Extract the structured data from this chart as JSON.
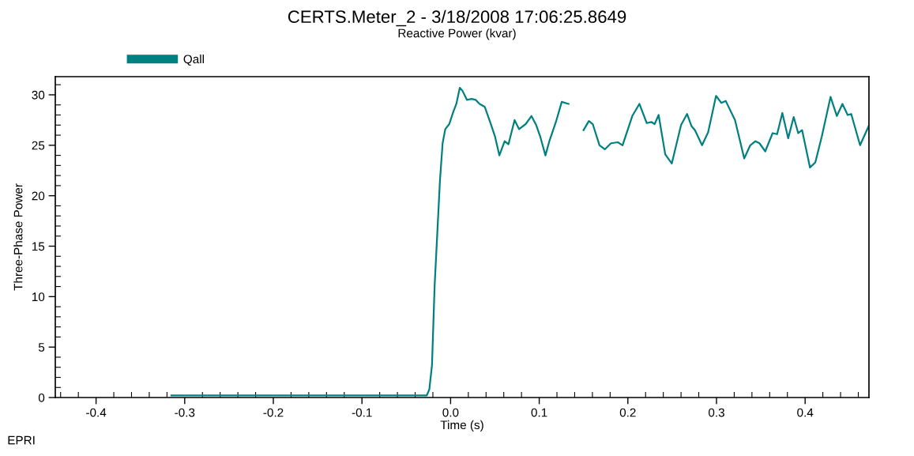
{
  "chart_data": {
    "type": "line",
    "title": "CERTS.Meter_2 - 3/18/2008 17:06:25.8649",
    "subtitle": "Reactive Power (kvar)",
    "xlabel": "Time (s)",
    "ylabel": "Three-Phase Power",
    "annotations": [
      "EPRI"
    ],
    "xlim": [
      -0.446,
      0.472
    ],
    "xticks": [
      -0.4,
      -0.3,
      -0.2,
      -0.1,
      {
        "value": 0,
        "label": "0.0"
      },
      0.1,
      0.2,
      0.3,
      0.4
    ],
    "ylim": [
      0,
      31.8
    ],
    "yticks": [
      0,
      5,
      10,
      15,
      20,
      25,
      30
    ],
    "grid": false,
    "legend": "top left",
    "marker": "none",
    "line_style": "solid",
    "series": [
      {
        "name": "Qall",
        "color": "#008080",
        "x": [
          -0.315,
          -0.2,
          -0.1,
          -0.027,
          -0.024,
          -0.021,
          -0.018,
          -0.015,
          -0.012,
          -0.009,
          -0.006,
          -0.0015,
          0.003,
          0.0065,
          0.0104,
          0.0134,
          0.0184,
          0.0238,
          0.0283,
          0.0327,
          0.0386,
          0.0446,
          0.05,
          0.055,
          0.061,
          0.0653,
          0.0722,
          0.0773,
          0.0847,
          0.0912,
          0.0966,
          0.101,
          0.107,
          0.1114,
          0.1188,
          0.1254,
          0.1331,
          0.14,
          0.15,
          0.156,
          0.1604,
          0.168,
          0.174,
          0.181,
          0.1887,
          0.194,
          0.205,
          0.213,
          0.2213,
          0.2267,
          0.2302,
          0.2347,
          0.2422,
          0.2496,
          0.26,
          0.2668,
          0.2718,
          0.2757,
          0.2837,
          0.2906,
          0.2995,
          0.3054,
          0.3104,
          0.3209,
          0.3313,
          0.3381,
          0.344,
          0.3485,
          0.355,
          0.3633,
          0.3684,
          0.3743,
          0.3809,
          0.3871,
          0.3922,
          0.3966,
          0.4055,
          0.4115,
          0.4189,
          0.4287,
          0.4358,
          0.4421,
          0.448,
          0.452,
          0.462,
          0.4717
        ],
        "values": [
          0.2,
          0.2,
          0.2,
          0.2,
          0.8,
          3.2,
          11.1,
          16.3,
          21.5,
          25.2,
          26.6,
          27.1,
          28.3,
          29.1,
          30.7,
          30.4,
          29.5,
          29.6,
          29.5,
          29.1,
          28.8,
          27.3,
          25.9,
          24.0,
          25.4,
          25.1,
          27.5,
          26.6,
          27.1,
          27.9,
          27.0,
          25.9,
          24.0,
          25.4,
          27.3,
          29.3,
          29.1,
          null,
          26.5,
          27.4,
          27.1,
          25.0,
          24.6,
          25.2,
          25.3,
          25.0,
          27.9,
          29.1,
          27.2,
          27.3,
          27.1,
          28.0,
          24.1,
          23.2,
          27.0,
          28.1,
          26.9,
          26.5,
          25.0,
          26.3,
          29.9,
          29.2,
          29.4,
          27.5,
          23.7,
          25.0,
          25.4,
          25.2,
          24.4,
          26.2,
          26.1,
          28.2,
          25.7,
          27.8,
          26.2,
          26.5,
          22.8,
          23.3,
          25.9,
          29.8,
          27.9,
          29.1,
          28.0,
          28.1,
          25.0,
          26.9
        ]
      }
    ]
  }
}
